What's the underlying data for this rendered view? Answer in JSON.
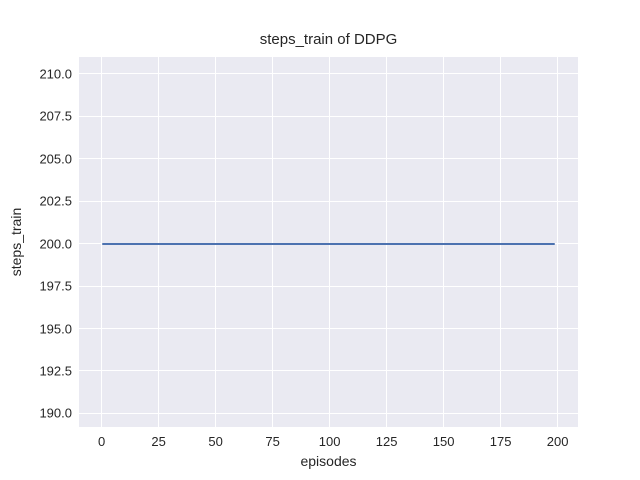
{
  "chart_data": {
    "type": "line",
    "title": "steps_train of DDPG",
    "xlabel": "episodes",
    "ylabel": "steps_train",
    "x_ticks": [
      0,
      25,
      50,
      75,
      100,
      125,
      150,
      175,
      200
    ],
    "y_ticks": [
      {
        "value": 210.0,
        "label": "210.0"
      },
      {
        "value": 207.5,
        "label": "207.5"
      },
      {
        "value": 205.0,
        "label": "205.0"
      },
      {
        "value": 202.5,
        "label": "202.5"
      },
      {
        "value": 200.0,
        "label": "200.0"
      },
      {
        "value": 197.5,
        "label": "197.5"
      },
      {
        "value": 195.0,
        "label": "195.0"
      },
      {
        "value": 192.5,
        "label": "192.5"
      },
      {
        "value": 190.0,
        "label": "190.0"
      }
    ],
    "xlim": [
      -9.95,
      208.95
    ],
    "ylim": [
      189.2,
      211.0
    ],
    "grid": true,
    "legend_position": "none",
    "series": [
      {
        "name": "steps_train",
        "constant_value": 200,
        "x_start": 0,
        "x_end": 199,
        "color": "#4c72b0"
      }
    ],
    "colors": {
      "figure_background": "#ffffff",
      "plot_background": "#eaeaf2",
      "gridline": "#ffffff",
      "text": "#262626",
      "line": "#4c72b0"
    }
  }
}
